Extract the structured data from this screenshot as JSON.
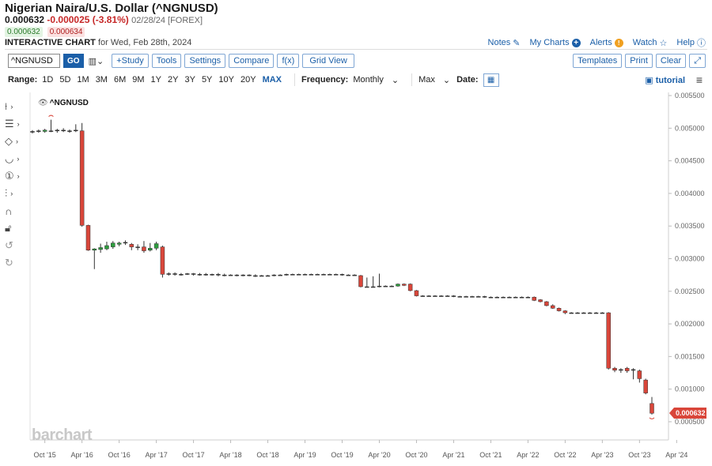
{
  "header": {
    "title": "Nigerian Naira/U.S. Dollar (^NGNUSD)",
    "last": "0.000632",
    "change": "-0.000025 (-3.81%)",
    "meta": "02/28/24 [FOREX]",
    "bid": "0.000632",
    "ask": "0.000634",
    "interactive_label": "INTERACTIVE CHART",
    "interactive_date": "for Wed, Feb 28th, 2024"
  },
  "toplinks": {
    "notes": "Notes",
    "my_charts": "My Charts",
    "alerts": "Alerts",
    "watch": "Watch",
    "help": "Help"
  },
  "toolbar": {
    "symbol_value": "^NGNUSD",
    "go": "GO",
    "study": "+Study",
    "tools": "Tools",
    "settings": "Settings",
    "compare": "Compare",
    "fx": "f(x)",
    "grid_view": "Grid View",
    "templates": "Templates",
    "print": "Print",
    "clear": "Clear"
  },
  "range": {
    "label": "Range:",
    "options": [
      "1D",
      "5D",
      "1M",
      "3M",
      "6M",
      "9M",
      "1Y",
      "2Y",
      "3Y",
      "5Y",
      "10Y",
      "20Y",
      "MAX"
    ],
    "selected": "MAX",
    "frequency_label": "Frequency:",
    "frequency_value": "Monthly",
    "period_value": "Max",
    "date_label": "Date:",
    "tutorial": "tutorial"
  },
  "legend": {
    "symbol": "^NGNUSD"
  },
  "logo": "barchart",
  "colors": {
    "up": "#2e9e3e",
    "down": "#d9463a",
    "accent": "#1b5fa8",
    "last_tag": "#d9463a"
  },
  "chart_data": {
    "type": "candlestick",
    "x_ticks": [
      "Oct '15",
      "Apr '16",
      "Oct '16",
      "Apr '17",
      "Oct '17",
      "Apr '18",
      "Oct '18",
      "Apr '19",
      "Oct '19",
      "Apr '20",
      "Oct '20",
      "Apr '21",
      "Oct '21",
      "Apr '22",
      "Oct '22",
      "Apr '23",
      "Oct '23",
      "Apr '24"
    ],
    "y_ticks": [
      "0.005500",
      "0.005000",
      "0.004500",
      "0.004000",
      "0.003500",
      "0.003000",
      "0.002500",
      "0.002000",
      "0.001500",
      "0.001000",
      "0.000500"
    ],
    "ylim": [
      0.00033,
      0.0055
    ],
    "last_value_label": "0.000632",
    "last_value": 0.000632,
    "candles": [
      {
        "t": 0,
        "o": 0.00494,
        "c": 0.00495,
        "h": 0.00497,
        "l": 0.00492
      },
      {
        "t": 1,
        "o": 0.00495,
        "c": 0.00496,
        "h": 0.00498,
        "l": 0.00493
      },
      {
        "t": 2,
        "o": 0.00495,
        "c": 0.00497,
        "h": 0.00499,
        "l": 0.00493
      },
      {
        "t": 3,
        "o": 0.00496,
        "c": 0.00496,
        "h": 0.00513,
        "l": 0.00494
      },
      {
        "t": 4,
        "o": 0.00496,
        "c": 0.00497,
        "h": 0.00499,
        "l": 0.00493
      },
      {
        "t": 5,
        "o": 0.00497,
        "c": 0.00496,
        "h": 0.005,
        "l": 0.00494
      },
      {
        "t": 6,
        "o": 0.00495,
        "c": 0.00496,
        "h": 0.00498,
        "l": 0.00493
      },
      {
        "t": 7,
        "o": 0.00496,
        "c": 0.00497,
        "h": 0.00506,
        "l": 0.00494
      },
      {
        "t": 8,
        "o": 0.00496,
        "c": 0.00351,
        "h": 0.00508,
        "l": 0.00349
      },
      {
        "t": 9,
        "o": 0.00351,
        "c": 0.00313,
        "h": 0.00352,
        "l": 0.00312
      },
      {
        "t": 10,
        "o": 0.00313,
        "c": 0.00315,
        "h": 0.00316,
        "l": 0.00284
      },
      {
        "t": 11,
        "o": 0.00314,
        "c": 0.00317,
        "h": 0.00323,
        "l": 0.00309
      },
      {
        "t": 12,
        "o": 0.00315,
        "c": 0.0032,
        "h": 0.00326,
        "l": 0.00313
      },
      {
        "t": 13,
        "o": 0.00318,
        "c": 0.00324,
        "h": 0.00327,
        "l": 0.00315
      },
      {
        "t": 14,
        "o": 0.00322,
        "c": 0.00324,
        "h": 0.00326,
        "l": 0.00319
      },
      {
        "t": 15,
        "o": 0.00324,
        "c": 0.00325,
        "h": 0.00328,
        "l": 0.00321
      },
      {
        "t": 16,
        "o": 0.00322,
        "c": 0.00318,
        "h": 0.00324,
        "l": 0.00313
      },
      {
        "t": 17,
        "o": 0.00318,
        "c": 0.00317,
        "h": 0.00322,
        "l": 0.00313
      },
      {
        "t": 18,
        "o": 0.00318,
        "c": 0.00312,
        "h": 0.00327,
        "l": 0.00309
      },
      {
        "t": 19,
        "o": 0.00313,
        "c": 0.00316,
        "h": 0.00324,
        "l": 0.00311
      },
      {
        "t": 20,
        "o": 0.00316,
        "c": 0.00323,
        "h": 0.00326,
        "l": 0.00313
      },
      {
        "t": 21,
        "o": 0.00318,
        "c": 0.00276,
        "h": 0.0032,
        "l": 0.00271
      },
      {
        "t": 22,
        "o": 0.00276,
        "c": 0.00277,
        "h": 0.00279,
        "l": 0.00274
      },
      {
        "t": 23,
        "o": 0.00277,
        "c": 0.00276,
        "h": 0.00279,
        "l": 0.00274
      },
      {
        "t": 24,
        "o": 0.00276,
        "c": 0.00276,
        "h": 0.00278,
        "l": 0.00274
      },
      {
        "t": 25,
        "o": 0.00276,
        "c": 0.00277,
        "h": 0.00278,
        "l": 0.00275
      },
      {
        "t": 26,
        "o": 0.00277,
        "c": 0.00276,
        "h": 0.00278,
        "l": 0.00274
      },
      {
        "t": 27,
        "o": 0.00276,
        "c": 0.00275,
        "h": 0.00278,
        "l": 0.00274
      },
      {
        "t": 28,
        "o": 0.00275,
        "c": 0.00276,
        "h": 0.00278,
        "l": 0.00274
      },
      {
        "t": 29,
        "o": 0.00276,
        "c": 0.00276,
        "h": 0.00277,
        "l": 0.00274
      },
      {
        "t": 30,
        "o": 0.00276,
        "c": 0.00275,
        "h": 0.00278,
        "l": 0.00273
      },
      {
        "t": 31,
        "o": 0.00275,
        "c": 0.00275,
        "h": 0.00277,
        "l": 0.00273
      },
      {
        "t": 32,
        "o": 0.00275,
        "c": 0.00275,
        "h": 0.00276,
        "l": 0.00274
      },
      {
        "t": 33,
        "o": 0.00275,
        "c": 0.00275,
        "h": 0.00276,
        "l": 0.00273
      },
      {
        "t": 34,
        "o": 0.00275,
        "c": 0.00274,
        "h": 0.00276,
        "l": 0.00273
      },
      {
        "t": 35,
        "o": 0.00274,
        "c": 0.00275,
        "h": 0.00276,
        "l": 0.00273
      },
      {
        "t": 36,
        "o": 0.00274,
        "c": 0.00274,
        "h": 0.00276,
        "l": 0.00272
      },
      {
        "t": 37,
        "o": 0.00274,
        "c": 0.00274,
        "h": 0.00275,
        "l": 0.00273
      },
      {
        "t": 38,
        "o": 0.00274,
        "c": 0.00274,
        "h": 0.00275,
        "l": 0.00273
      },
      {
        "t": 39,
        "o": 0.00274,
        "c": 0.00275,
        "h": 0.00276,
        "l": 0.00273
      },
      {
        "t": 40,
        "o": 0.00275,
        "c": 0.00275,
        "h": 0.00276,
        "l": 0.00274
      },
      {
        "t": 41,
        "o": 0.00275,
        "c": 0.00276,
        "h": 0.00277,
        "l": 0.00274
      },
      {
        "t": 42,
        "o": 0.00276,
        "c": 0.00276,
        "h": 0.00277,
        "l": 0.00275
      },
      {
        "t": 43,
        "o": 0.00276,
        "c": 0.00276,
        "h": 0.00277,
        "l": 0.00275
      },
      {
        "t": 44,
        "o": 0.00276,
        "c": 0.00276,
        "h": 0.00277,
        "l": 0.00275
      },
      {
        "t": 45,
        "o": 0.00276,
        "c": 0.00276,
        "h": 0.00277,
        "l": 0.00275
      },
      {
        "t": 46,
        "o": 0.00276,
        "c": 0.00276,
        "h": 0.00277,
        "l": 0.00275
      },
      {
        "t": 47,
        "o": 0.00276,
        "c": 0.00276,
        "h": 0.00277,
        "l": 0.00275
      },
      {
        "t": 48,
        "o": 0.00276,
        "c": 0.00276,
        "h": 0.00277,
        "l": 0.00275
      },
      {
        "t": 49,
        "o": 0.00276,
        "c": 0.00276,
        "h": 0.00277,
        "l": 0.00275
      },
      {
        "t": 50,
        "o": 0.00276,
        "c": 0.00275,
        "h": 0.00277,
        "l": 0.00274
      },
      {
        "t": 51,
        "o": 0.00275,
        "c": 0.00275,
        "h": 0.00276,
        "l": 0.00274
      },
      {
        "t": 52,
        "o": 0.00275,
        "c": 0.00275,
        "h": 0.00276,
        "l": 0.00274
      },
      {
        "t": 53,
        "o": 0.00274,
        "c": 0.00257,
        "h": 0.00275,
        "l": 0.00256
      },
      {
        "t": 54,
        "o": 0.00257,
        "c": 0.00257,
        "h": 0.00271,
        "l": 0.00256
      },
      {
        "t": 55,
        "o": 0.00257,
        "c": 0.00257,
        "h": 0.00273,
        "l": 0.00256
      },
      {
        "t": 56,
        "o": 0.00257,
        "c": 0.00258,
        "h": 0.00277,
        "l": 0.00256
      },
      {
        "t": 57,
        "o": 0.00258,
        "c": 0.00258,
        "h": 0.00259,
        "l": 0.00257
      },
      {
        "t": 58,
        "o": 0.00258,
        "c": 0.00258,
        "h": 0.00259,
        "l": 0.00257
      },
      {
        "t": 59,
        "o": 0.00258,
        "c": 0.00261,
        "h": 0.00262,
        "l": 0.00257
      },
      {
        "t": 60,
        "o": 0.00261,
        "c": 0.00259,
        "h": 0.00262,
        "l": 0.00258
      },
      {
        "t": 61,
        "o": 0.00261,
        "c": 0.00251,
        "h": 0.00262,
        "l": 0.0025
      },
      {
        "t": 62,
        "o": 0.00251,
        "c": 0.00243,
        "h": 0.00252,
        "l": 0.00242
      },
      {
        "t": 63,
        "o": 0.00243,
        "c": 0.00243,
        "h": 0.00244,
        "l": 0.00242
      },
      {
        "t": 64,
        "o": 0.00243,
        "c": 0.00243,
        "h": 0.00244,
        "l": 0.00242
      },
      {
        "t": 65,
        "o": 0.00243,
        "c": 0.00243,
        "h": 0.00244,
        "l": 0.00242
      },
      {
        "t": 66,
        "o": 0.00243,
        "c": 0.00243,
        "h": 0.00244,
        "l": 0.00242
      },
      {
        "t": 67,
        "o": 0.00243,
        "c": 0.00243,
        "h": 0.00244,
        "l": 0.00242
      },
      {
        "t": 68,
        "o": 0.00243,
        "c": 0.00242,
        "h": 0.00244,
        "l": 0.00241
      },
      {
        "t": 69,
        "o": 0.00242,
        "c": 0.00242,
        "h": 0.00243,
        "l": 0.00241
      },
      {
        "t": 70,
        "o": 0.00242,
        "c": 0.00242,
        "h": 0.00243,
        "l": 0.00241
      },
      {
        "t": 71,
        "o": 0.00242,
        "c": 0.00242,
        "h": 0.00243,
        "l": 0.00241
      },
      {
        "t": 72,
        "o": 0.00242,
        "c": 0.00242,
        "h": 0.00243,
        "l": 0.00241
      },
      {
        "t": 73,
        "o": 0.00242,
        "c": 0.00241,
        "h": 0.00243,
        "l": 0.0024
      },
      {
        "t": 74,
        "o": 0.00241,
        "c": 0.00241,
        "h": 0.00242,
        "l": 0.0024
      },
      {
        "t": 75,
        "o": 0.00241,
        "c": 0.00241,
        "h": 0.00242,
        "l": 0.0024
      },
      {
        "t": 76,
        "o": 0.00241,
        "c": 0.00241,
        "h": 0.00242,
        "l": 0.0024
      },
      {
        "t": 77,
        "o": 0.00241,
        "c": 0.00241,
        "h": 0.00242,
        "l": 0.0024
      },
      {
        "t": 78,
        "o": 0.00241,
        "c": 0.00241,
        "h": 0.00242,
        "l": 0.0024
      },
      {
        "t": 79,
        "o": 0.00241,
        "c": 0.00241,
        "h": 0.00242,
        "l": 0.0024
      },
      {
        "t": 80,
        "o": 0.00241,
        "c": 0.00241,
        "h": 0.00242,
        "l": 0.0024
      },
      {
        "t": 81,
        "o": 0.00241,
        "c": 0.00236,
        "h": 0.00242,
        "l": 0.00235
      },
      {
        "t": 82,
        "o": 0.00237,
        "c": 0.00234,
        "h": 0.00238,
        "l": 0.00233
      },
      {
        "t": 83,
        "o": 0.00234,
        "c": 0.00228,
        "h": 0.00235,
        "l": 0.00227
      },
      {
        "t": 84,
        "o": 0.00228,
        "c": 0.00224,
        "h": 0.0023,
        "l": 0.00223
      },
      {
        "t": 85,
        "o": 0.00224,
        "c": 0.0022,
        "h": 0.00225,
        "l": 0.00219
      },
      {
        "t": 86,
        "o": 0.0022,
        "c": 0.00217,
        "h": 0.00221,
        "l": 0.00215
      },
      {
        "t": 87,
        "o": 0.00217,
        "c": 0.00217,
        "h": 0.00218,
        "l": 0.00216
      },
      {
        "t": 88,
        "o": 0.00217,
        "c": 0.00217,
        "h": 0.00218,
        "l": 0.00216
      },
      {
        "t": 89,
        "o": 0.00217,
        "c": 0.00217,
        "h": 0.00218,
        "l": 0.00216
      },
      {
        "t": 90,
        "o": 0.00217,
        "c": 0.00217,
        "h": 0.00218,
        "l": 0.00216
      },
      {
        "t": 91,
        "o": 0.00217,
        "c": 0.00217,
        "h": 0.00218,
        "l": 0.00216
      },
      {
        "t": 92,
        "o": 0.00217,
        "c": 0.00217,
        "h": 0.00218,
        "l": 0.00216
      },
      {
        "t": 93,
        "o": 0.00217,
        "c": 0.00132,
        "h": 0.00218,
        "l": 0.0013
      },
      {
        "t": 94,
        "o": 0.00132,
        "c": 0.00129,
        "h": 0.00134,
        "l": 0.00126
      },
      {
        "t": 95,
        "o": 0.0013,
        "c": 0.0013,
        "h": 0.00132,
        "l": 0.00125
      },
      {
        "t": 96,
        "o": 0.00132,
        "c": 0.00128,
        "h": 0.00134,
        "l": 0.00125
      },
      {
        "t": 97,
        "o": 0.0013,
        "c": 0.00129,
        "h": 0.00132,
        "l": 0.00115
      },
      {
        "t": 98,
        "o": 0.00128,
        "c": 0.00116,
        "h": 0.0013,
        "l": 0.0011
      },
      {
        "t": 99,
        "o": 0.00114,
        "c": 0.00094,
        "h": 0.00116,
        "l": 0.00092
      },
      {
        "t": 100,
        "o": 0.00078,
        "c": 0.00063,
        "h": 0.00088,
        "l": 0.00061
      }
    ]
  }
}
